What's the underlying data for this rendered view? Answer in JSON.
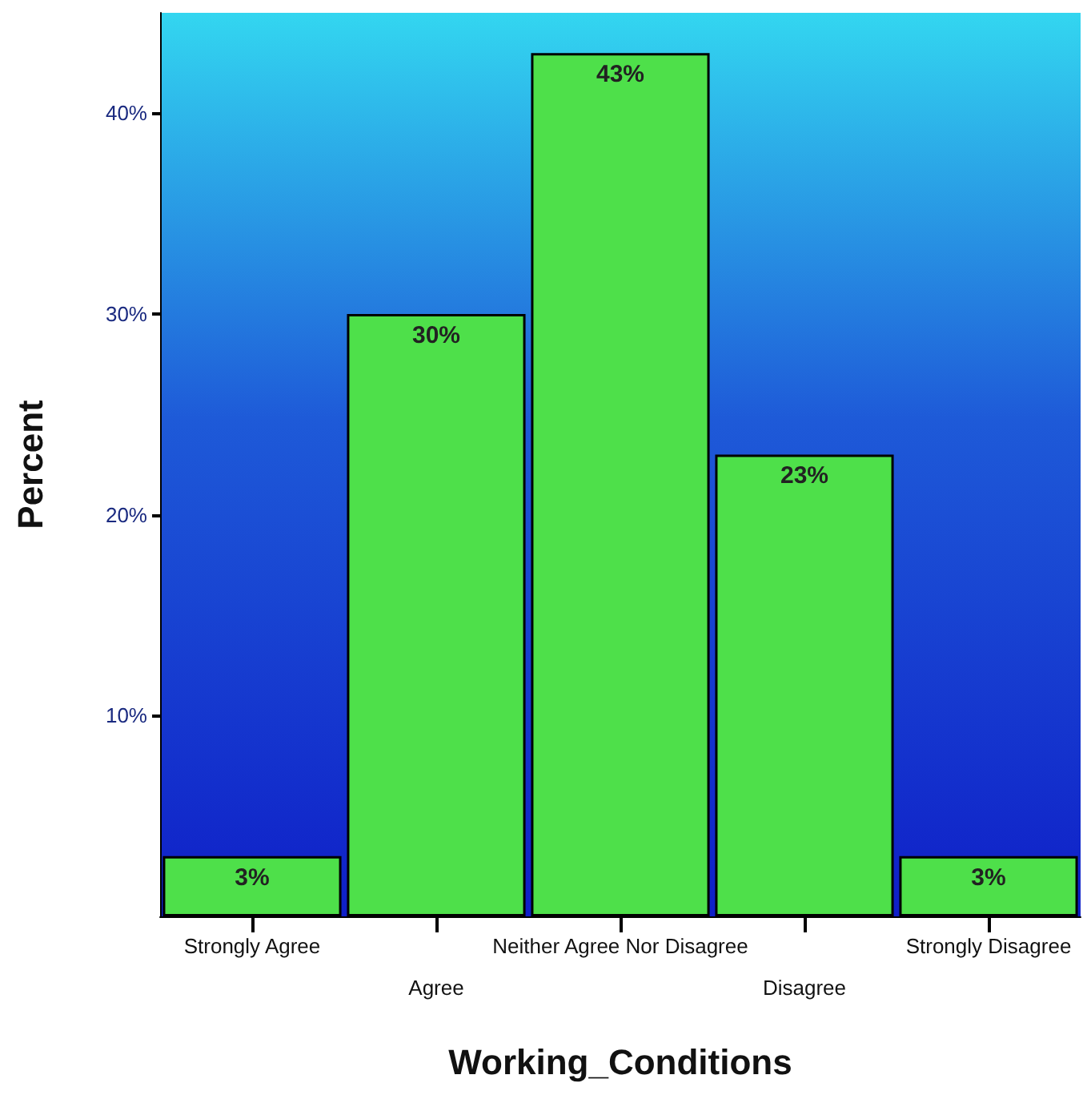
{
  "chart_data": {
    "type": "bar",
    "xlabel": "Working_Conditions",
    "ylabel": "Percent",
    "categories": [
      "Strongly Agree",
      "Agree",
      "Neither Agree Nor Disagree",
      "Disagree",
      "Strongly Disagree"
    ],
    "values": [
      3,
      30,
      43,
      23,
      3
    ],
    "value_labels": [
      "3%",
      "30%",
      "43%",
      "23%",
      "3%"
    ],
    "color": "#4ee04a",
    "ylim": [
      0,
      45
    ],
    "yticks": [
      {
        "value": 10,
        "label": "10%"
      },
      {
        "value": 20,
        "label": "20%"
      },
      {
        "value": 30,
        "label": "30%"
      },
      {
        "value": 40,
        "label": "40%"
      }
    ]
  }
}
